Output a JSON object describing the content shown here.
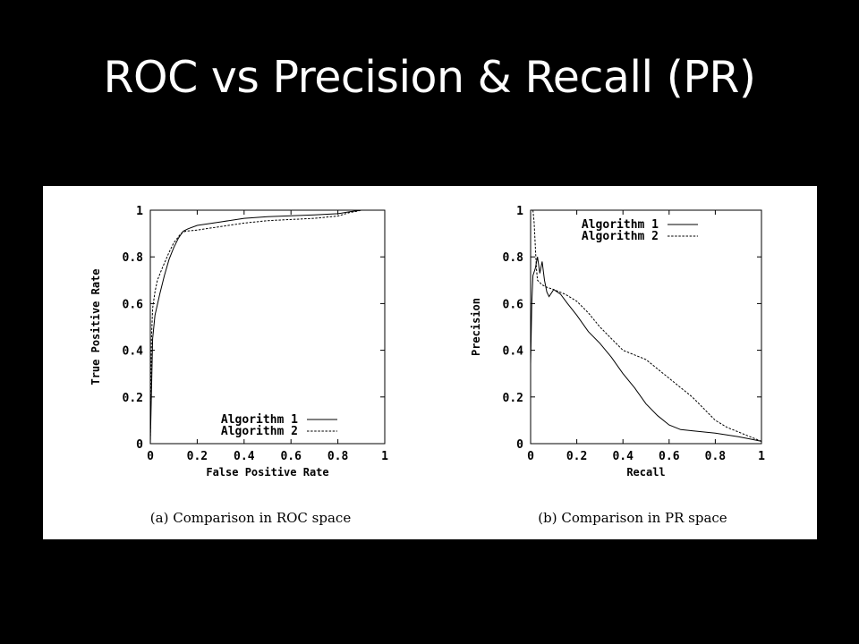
{
  "slide": {
    "title": "ROC vs Precision & Recall (PR)"
  },
  "colors": {
    "background": "#000000",
    "panel": "#ffffff",
    "ink": "#000000"
  },
  "chart_data": [
    {
      "type": "line",
      "caption": "(a) Comparison in ROC space",
      "xlabel": "False Positive Rate",
      "ylabel": "True Positive Rate",
      "xlim": [
        0,
        1
      ],
      "ylim": [
        0,
        1
      ],
      "xticks": [
        "0",
        "0.2",
        "0.4",
        "0.6",
        "0.8",
        "1"
      ],
      "yticks": [
        "0",
        "0.2",
        "0.4",
        "0.6",
        "0.8",
        "1"
      ],
      "grid": false,
      "legend": "bottom-right",
      "series": [
        {
          "name": "Algorithm 1",
          "style": "solid",
          "x": [
            0,
            0.01,
            0.02,
            0.04,
            0.06,
            0.08,
            0.1,
            0.12,
            0.14,
            0.16,
            0.2,
            0.3,
            0.4,
            0.5,
            0.6,
            0.7,
            0.8,
            0.85,
            0.9,
            1
          ],
          "y": [
            0,
            0.45,
            0.55,
            0.64,
            0.72,
            0.79,
            0.84,
            0.88,
            0.91,
            0.92,
            0.935,
            0.95,
            0.965,
            0.972,
            0.976,
            0.98,
            0.985,
            0.993,
            1,
            1
          ]
        },
        {
          "name": "Algorithm 2",
          "style": "dashed",
          "x": [
            0,
            0.005,
            0.01,
            0.02,
            0.03,
            0.05,
            0.08,
            0.1,
            0.13,
            0.15,
            0.2,
            0.3,
            0.4,
            0.5,
            0.6,
            0.7,
            0.8,
            0.85,
            0.88,
            0.9,
            1
          ],
          "y": [
            0,
            0.45,
            0.58,
            0.65,
            0.7,
            0.75,
            0.82,
            0.86,
            0.9,
            0.91,
            0.915,
            0.93,
            0.945,
            0.955,
            0.96,
            0.965,
            0.975,
            0.99,
            0.995,
            1,
            1
          ]
        }
      ]
    },
    {
      "type": "line",
      "caption": "(b) Comparison in PR space",
      "xlabel": "Recall",
      "ylabel": "Precision",
      "xlim": [
        0,
        1
      ],
      "ylim": [
        0,
        1
      ],
      "xticks": [
        "0",
        "0.2",
        "0.4",
        "0.6",
        "0.8",
        "1"
      ],
      "yticks": [
        "0",
        "0.2",
        "0.4",
        "0.6",
        "0.8",
        "1"
      ],
      "grid": false,
      "legend": "top-right",
      "series": [
        {
          "name": "Algorithm 1",
          "style": "solid",
          "x": [
            0,
            0.005,
            0.01,
            0.02,
            0.03,
            0.04,
            0.05,
            0.06,
            0.07,
            0.08,
            0.1,
            0.13,
            0.16,
            0.2,
            0.25,
            0.3,
            0.35,
            0.4,
            0.45,
            0.5,
            0.55,
            0.6,
            0.65,
            0.7,
            0.8,
            0.9,
            0.95,
            1
          ],
          "y": [
            0.34,
            0.6,
            0.72,
            0.75,
            0.8,
            0.73,
            0.78,
            0.7,
            0.65,
            0.63,
            0.66,
            0.64,
            0.6,
            0.55,
            0.48,
            0.43,
            0.37,
            0.3,
            0.24,
            0.17,
            0.12,
            0.08,
            0.06,
            0.055,
            0.045,
            0.03,
            0.02,
            0.01
          ]
        },
        {
          "name": "Algorithm 2",
          "style": "dashed",
          "x": [
            0.01,
            0.015,
            0.02,
            0.025,
            0.03,
            0.04,
            0.05,
            0.07,
            0.1,
            0.15,
            0.2,
            0.25,
            0.3,
            0.35,
            0.4,
            0.45,
            0.5,
            0.55,
            0.6,
            0.65,
            0.7,
            0.75,
            0.8,
            0.85,
            0.9,
            0.95,
            1
          ],
          "y": [
            1.0,
            0.95,
            0.85,
            0.75,
            0.7,
            0.69,
            0.68,
            0.67,
            0.66,
            0.64,
            0.61,
            0.56,
            0.5,
            0.45,
            0.4,
            0.38,
            0.36,
            0.32,
            0.28,
            0.24,
            0.2,
            0.15,
            0.1,
            0.07,
            0.05,
            0.03,
            0.01
          ]
        }
      ]
    }
  ]
}
